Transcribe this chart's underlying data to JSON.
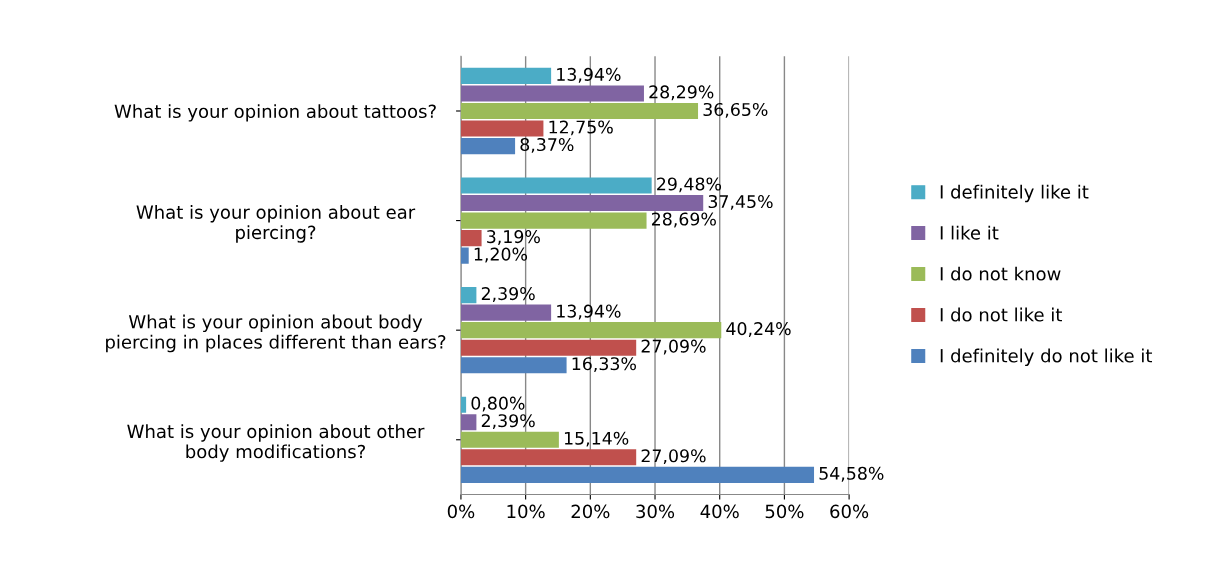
{
  "chart_data": {
    "type": "bar",
    "orientation": "horizontal",
    "categories": [
      "What is your opinion about tattoos?",
      "What is your opinion about ear\npiercing?",
      "What is your opinion about body\npiercing in places different than ears?",
      "What is your opinion about other\nbody modifications?"
    ],
    "series": [
      {
        "name": "I definitely like it",
        "color": "#4bacc6",
        "values": [
          13.94,
          29.48,
          2.39,
          0.8
        ],
        "value_labels": [
          "13,94%",
          "29,48%",
          "2,39%",
          "0,80%"
        ]
      },
      {
        "name": "I like it",
        "color": "#8064a2",
        "values": [
          28.29,
          37.45,
          13.94,
          2.39
        ],
        "value_labels": [
          "28,29%",
          "37,45%",
          "13,94%",
          "2,39%"
        ]
      },
      {
        "name": "I do not know",
        "color": "#9bbb59",
        "values": [
          36.65,
          28.69,
          40.24,
          15.14
        ],
        "value_labels": [
          "36,65%",
          "28,69%",
          "40,24%",
          "15,14%"
        ]
      },
      {
        "name": "I do not like it",
        "color": "#c0504d",
        "values": [
          12.75,
          3.19,
          27.09,
          27.09
        ],
        "value_labels": [
          "12,75%",
          "3,19%",
          "27,09%",
          "27,09%"
        ]
      },
      {
        "name": "I definitely do not like it",
        "color": "#4f81bd",
        "values": [
          8.37,
          1.2,
          16.33,
          54.58
        ],
        "value_labels": [
          "8,37%",
          "1,20%",
          "16,33%",
          "54,58%"
        ]
      }
    ],
    "xlim": [
      0,
      60
    ],
    "xticks": [
      {
        "value": 0,
        "label": "0%"
      },
      {
        "value": 10,
        "label": "10%"
      },
      {
        "value": 20,
        "label": "20%"
      },
      {
        "value": 30,
        "label": "30%"
      },
      {
        "value": 40,
        "label": "40%"
      },
      {
        "value": 50,
        "label": "50%"
      },
      {
        "value": 60,
        "label": "60%"
      }
    ],
    "grid": "x",
    "legend": "right"
  }
}
